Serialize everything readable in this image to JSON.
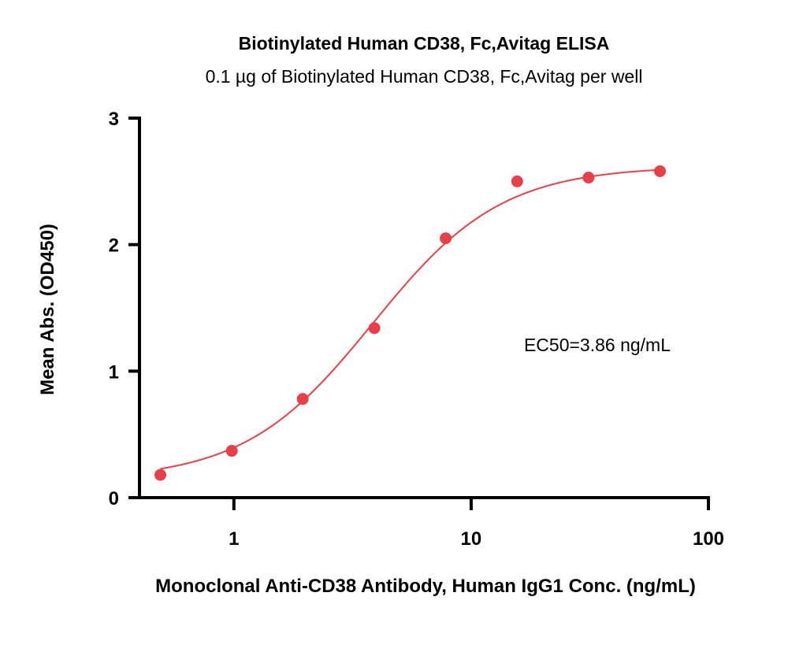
{
  "chart_data": {
    "type": "scatter",
    "title": "Biotinylated Human CD38, Fc,Avitag ELISA",
    "subtitle": "0.1 µg of Biotinylated Human CD38, Fc,Avitag per well",
    "xlabel": "Monoclonal Anti-CD38 Antibody, Human IgG1 Conc. (ng/mL)",
    "ylabel": "Mean Abs. (OD450)",
    "xscale": "log",
    "xlim": [
      0.4,
      100
    ],
    "ylim": [
      0,
      3
    ],
    "xticks": [
      1,
      10,
      100
    ],
    "xtick_labels": [
      "1",
      "10",
      "100"
    ],
    "yticks": [
      0,
      1,
      2,
      3
    ],
    "ytick_labels": [
      "0",
      "1",
      "2",
      "3"
    ],
    "grid": false,
    "annotation": "EC50=3.86 ng/mL",
    "series": [
      {
        "x": [
          0.49,
          0.98,
          1.95,
          3.91,
          7.81,
          15.63,
          31.25,
          62.5
        ],
        "y": [
          0.18,
          0.37,
          0.78,
          1.34,
          2.05,
          2.5,
          2.53,
          2.58
        ]
      }
    ],
    "fit_curve": {
      "model": "4PL",
      "bottom": 0.14,
      "top": 2.62,
      "ec50": 3.86,
      "hill": 1.6
    },
    "colors": {
      "series": "#e8404a",
      "axis": "#000000"
    }
  }
}
